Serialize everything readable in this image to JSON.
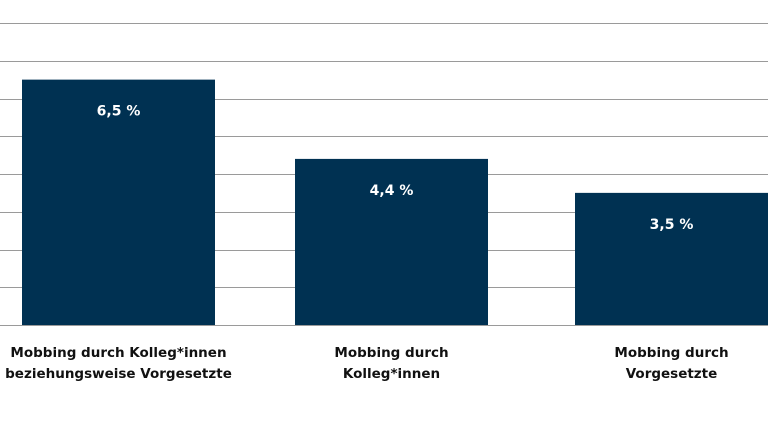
{
  "chart_data": {
    "type": "bar",
    "title": "",
    "xlabel": "",
    "ylabel": "",
    "categories": [
      [
        "Mobbing durch Kolleg*innen",
        "beziehungsweise Vorgesetzte"
      ],
      [
        "Mobbing durch",
        "Kolleg*innen"
      ],
      [
        "Mobbing durch",
        "Vorgesetzte"
      ]
    ],
    "values": [
      6.5,
      4.4,
      3.5
    ],
    "value_labels": [
      "6,5 %",
      "4,4 %",
      "3,5 %"
    ],
    "ylim": [
      0,
      8
    ],
    "y_gridlines": [
      1,
      2,
      3,
      4,
      5,
      6,
      7,
      8
    ],
    "grid": true,
    "legend": "none",
    "colors": {
      "bar": "#003152",
      "grid": "#9a9a9a",
      "label_on_bar": "#ffffff",
      "category_text": "#111111"
    }
  }
}
